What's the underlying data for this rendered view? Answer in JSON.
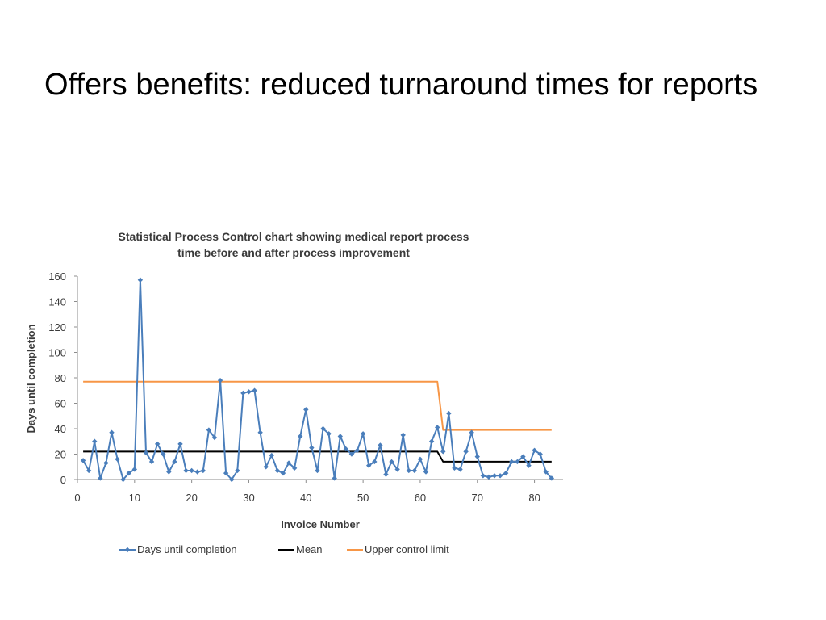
{
  "slide": {
    "title": "Offers benefits: reduced turnaround times for reports"
  },
  "chart_data": {
    "type": "line",
    "title_lines": [
      "Statistical Process Control chart showing medical report process",
      "time before and after process improvement"
    ],
    "xlabel": "Invoice Number",
    "ylabel": "Days until completion",
    "xlim": [
      0,
      85
    ],
    "ylim": [
      0,
      160
    ],
    "xticks": [
      0,
      10,
      20,
      30,
      40,
      50,
      60,
      70,
      80
    ],
    "yticks": [
      0,
      20,
      40,
      60,
      80,
      100,
      120,
      140,
      160
    ],
    "grid": false,
    "legend_position": "bottom",
    "series": [
      {
        "name": "Days until completion",
        "color": "#4a7ebb",
        "marker": "diamond",
        "x": [
          1,
          2,
          3,
          4,
          5,
          6,
          7,
          8,
          9,
          10,
          11,
          12,
          13,
          14,
          15,
          16,
          17,
          18,
          19,
          20,
          21,
          22,
          23,
          24,
          25,
          26,
          27,
          28,
          29,
          30,
          31,
          32,
          33,
          34,
          35,
          36,
          37,
          38,
          39,
          40,
          41,
          42,
          43,
          44,
          45,
          46,
          47,
          48,
          49,
          50,
          51,
          52,
          53,
          54,
          55,
          56,
          57,
          58,
          59,
          60,
          61,
          62,
          63,
          64,
          65,
          66,
          67,
          68,
          69,
          70,
          71,
          72,
          73,
          74,
          75,
          76,
          77,
          78,
          79,
          80,
          81,
          82,
          83
        ],
        "y": [
          15,
          7,
          30,
          1,
          13,
          37,
          16,
          0,
          5,
          8,
          157,
          21,
          14,
          28,
          20,
          6,
          14,
          28,
          7,
          7,
          6,
          7,
          39,
          33,
          78,
          5,
          0,
          7,
          68,
          69,
          70,
          37,
          10,
          19,
          7,
          5,
          13,
          9,
          34,
          55,
          25,
          7,
          40,
          36,
          1,
          34,
          24,
          20,
          23,
          36,
          11,
          14,
          27,
          4,
          14,
          8,
          35,
          7,
          7,
          16,
          6,
          30,
          41,
          22,
          52,
          9,
          8,
          22,
          37,
          18,
          3,
          2,
          3,
          3,
          5,
          14,
          14,
          18,
          11,
          23,
          20,
          6,
          1
        ]
      },
      {
        "name": "Mean",
        "color": "#000000",
        "x": [
          1,
          62,
          63,
          64,
          83
        ],
        "y": [
          22,
          22,
          22,
          14,
          14
        ]
      },
      {
        "name": "Upper control limit",
        "color": "#f79646",
        "x": [
          1,
          63,
          64,
          83
        ],
        "y": [
          77,
          77,
          39,
          39
        ]
      }
    ]
  }
}
